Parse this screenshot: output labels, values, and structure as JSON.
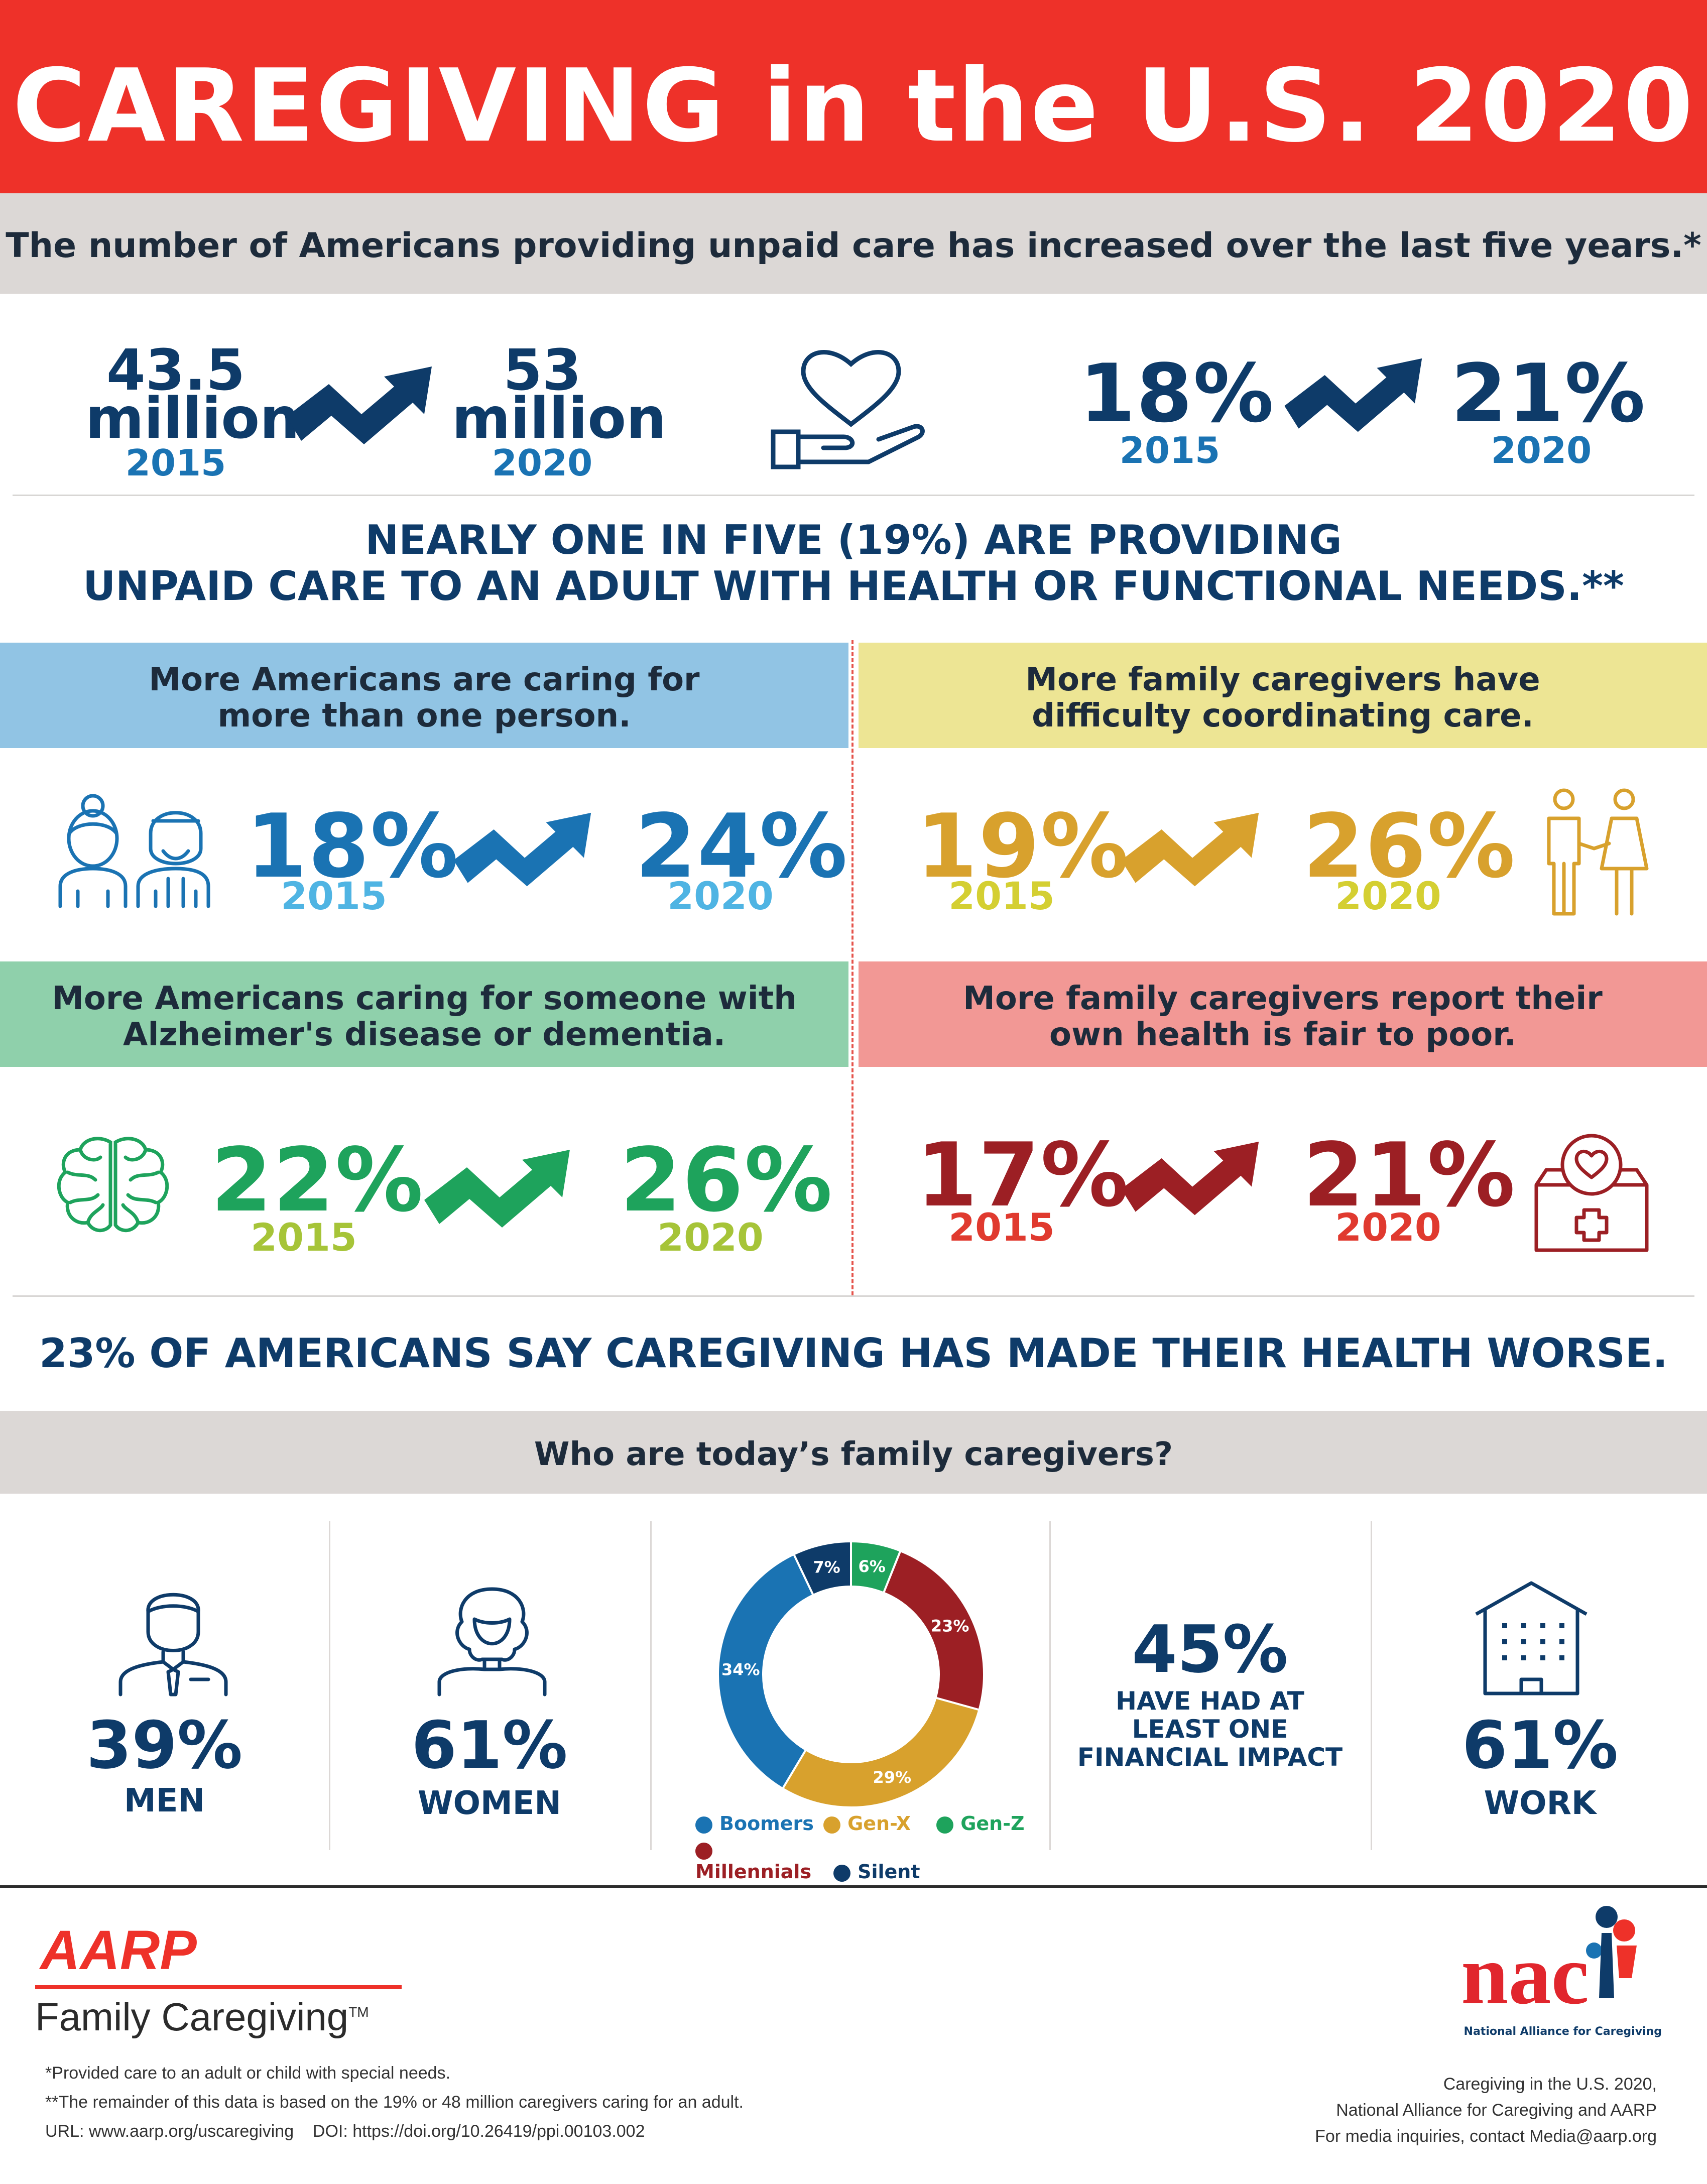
{
  "header": {
    "title": "CAREGIVING in the U.S. 2020",
    "subtitle": "The number of Americans providing unpaid care has increased over the last five years.*"
  },
  "top_stats": {
    "left": {
      "from_value_line1": "43.5",
      "from_value_line2": "million",
      "from_year": "2015",
      "to_value_line1": "53",
      "to_value_line2": "million",
      "to_year": "2020"
    },
    "right": {
      "from_value": "18%",
      "from_year": "2015",
      "to_value": "21%",
      "to_year": "2020"
    }
  },
  "headline1": {
    "line1": "NEARLY ONE IN FIVE (19%) ARE PROVIDING",
    "line2": "UNPAID CARE TO AN ADULT WITH HEALTH OR FUNCTIONAL NEEDS.**"
  },
  "quadrants": {
    "q1": {
      "title_line1": "More Americans are caring for",
      "title_line2": "more than one person.",
      "from_value": "18%",
      "from_year": "2015",
      "to_value": "24%",
      "to_year": "2020",
      "bg": "#91c4e4",
      "color": "#1a73b3",
      "year_color": "#4fb4e3"
    },
    "q2": {
      "title_line1": "More family caregivers have",
      "title_line2": "difficulty coordinating care.",
      "from_value": "19%",
      "from_year": "2015",
      "to_value": "26%",
      "to_year": "2020",
      "bg": "#ede594",
      "color": "#d8a12d",
      "year_color": "#d4cf32"
    },
    "q3": {
      "title_line1": "More Americans caring for someone with",
      "title_line2": "Alzheimer's disease or dementia.",
      "from_value": "22%",
      "from_year": "2015",
      "to_value": "26%",
      "to_year": "2020",
      "bg": "#8fd0ab",
      "color": "#1ea35c",
      "year_color": "#a6c438"
    },
    "q4": {
      "title_line1": "More family caregivers report their",
      "title_line2": "own health is fair to poor.",
      "from_value": "17%",
      "from_year": "2015",
      "to_value": "21%",
      "to_year": "2020",
      "bg": "#f29895",
      "color": "#9c1f24",
      "year_color": "#e03a2f"
    }
  },
  "headline2": "23% OF AMERICANS SAY CAREGIVING HAS MADE THEIR HEALTH WORSE.",
  "who": {
    "title": "Who are today’s family caregivers?",
    "men": {
      "value": "39%",
      "label": "MEN"
    },
    "women": {
      "value": "61%",
      "label": "WOMEN"
    },
    "financial": {
      "value": "45%",
      "line1": "HAVE HAD AT",
      "line2": "LEAST ONE",
      "line3": "FINANCIAL IMPACT"
    },
    "work": {
      "value": "61%",
      "label": "WORK"
    }
  },
  "chart_data": {
    "type": "pie",
    "categories": [
      "Boomers",
      "Gen-X",
      "Gen-Z",
      "Millennials",
      "Silent"
    ],
    "values": [
      34,
      29,
      6,
      23,
      7
    ],
    "labels": [
      "34%",
      "29%",
      "6%",
      "23%",
      "7%"
    ],
    "colors": {
      "Boomers": "#1a73b3",
      "Gen-X": "#d8a12d",
      "Gen-Z": "#1ea35c",
      "Millennials": "#9c1f24",
      "Silent": "#0e3b69"
    },
    "legend_position": "bottom"
  },
  "footer": {
    "aarp_logo": "AARP",
    "aarp_sub": "Family Caregiving",
    "tm": "TM",
    "note1": "*Provided care to an adult or child with special needs.",
    "note2": "**The remainder of this data is based on the 19% or 48 million caregivers caring for an adult.",
    "url": "URL: www.aarp.org/uscaregiving",
    "doi": "DOI: https://doi.org/10.26419/ppi.00103.002",
    "nac_logo": "nac",
    "nac_name": "National Alliance for Caregiving",
    "credit1": "Caregiving in the U.S. 2020,",
    "credit2": "National Alliance for Caregiving and AARP",
    "credit3": "For media inquiries, contact Media@aarp.org"
  }
}
